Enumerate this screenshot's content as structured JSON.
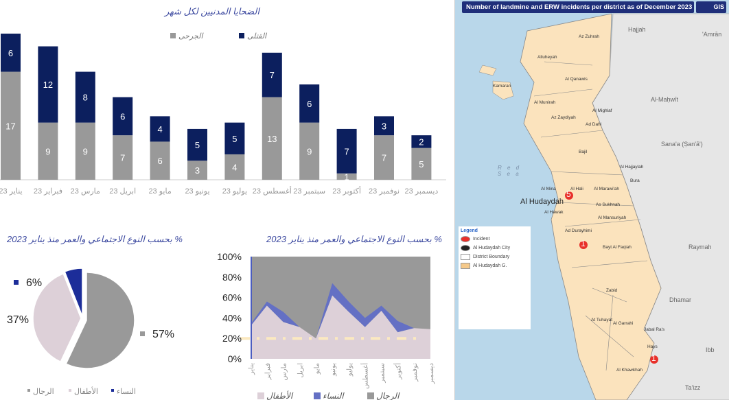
{
  "bar_chart_title": "الضحايا المدنيين لكل شهر",
  "pie_title": "% بحسب النوع الاجتماعي والعمر منذ يناير 2023",
  "area_title": "% بحسب النوع الاجتماعي والعمر منذ يناير 2023",
  "map": {
    "title": "Number of landmine and ERW incidents per district as of December 2023",
    "logo": "GIS",
    "sea_label": "R e d\nS e a",
    "regions": [
      "Hajjah",
      "'Amrān",
      "Al-Maḥwīt",
      "Sana'a (Ṣan'ā')",
      "Raymah",
      "Dhamar",
      "Ibb",
      "Ta'izz"
    ],
    "districts": [
      "Az Zuhrah",
      "Alluheyah",
      "Al Qanawis",
      "Kamaran",
      "Al Munirah",
      "Al Mighlaf",
      "Az Zaydiyah",
      "Ad Dahi",
      "Bajil",
      "Al Hajjaylah",
      "Bura",
      "Al Mina",
      "Al Hali",
      "Al Marawi'ah",
      "As Sukhnah",
      "Al Hawak",
      "Al Mansuriyah",
      "Ad Durayhimi",
      "Bayt Al Faqiah",
      "Zabid",
      "At Tuhayat",
      "Al Garrahi",
      "Jabal Ra's",
      "Hays",
      "Al Khawkhah"
    ],
    "city": "Al Hudaydah",
    "incidents": [
      {
        "district": "Al Hali",
        "count": "5"
      },
      {
        "district": "Ad Durayhimi",
        "count": "1"
      },
      {
        "district": "Hays",
        "count": "1"
      }
    ],
    "legend": {
      "title": "Legend",
      "items": [
        "Incident",
        "Al Hudaydah City",
        "District Boundary",
        "Al Hudaydah G."
      ]
    }
  },
  "chart_data": [
    {
      "type": "bar",
      "stacked": true,
      "title": "الضحايا المدنيين لكل شهر",
      "categories": [
        "يناير 23",
        "فبراير 23",
        "مارس 23",
        "ابريل 23",
        "مايو 23",
        "يونيو 23",
        "يوليو 23",
        "أغسطس 23",
        "سبتمبر 23",
        "أكتوبر 23",
        "نوفمبر 23",
        "ديسمبر 23"
      ],
      "series": [
        {
          "name": "الجرحى",
          "color": "#999999",
          "values": [
            17,
            9,
            9,
            7,
            6,
            3,
            4,
            13,
            9,
            1,
            7,
            5
          ]
        },
        {
          "name": "القتلى",
          "color": "#0c1f5e",
          "values": [
            6,
            12,
            8,
            6,
            4,
            5,
            5,
            7,
            6,
            7,
            3,
            2
          ]
        }
      ],
      "legend": "top-center"
    },
    {
      "type": "pie",
      "title": "% بحسب النوع الاجتماعي والعمر منذ يناير 2023",
      "slices": [
        {
          "name": "الرجال",
          "value": 57,
          "label": "57%",
          "color": "#999999"
        },
        {
          "name": "الأطفال",
          "value": 37,
          "label": "37%",
          "color": "#ddd0d8"
        },
        {
          "name": "النساء",
          "value": 6,
          "label": "6%",
          "color": "#1c2d99"
        }
      ],
      "legend": "bottom"
    },
    {
      "type": "area",
      "stacked": true,
      "title": "% بحسب النوع الاجتماعي والعمر منذ يناير 2023",
      "categories": [
        "يناير",
        "فبراير",
        "مارس",
        "ابريل",
        "مايو",
        "يونيو",
        "يوليو",
        "أغسطس",
        "سبتمبر",
        "أكتوبر",
        "نوفمبر",
        "ديسمبر"
      ],
      "yticks": [
        "0%",
        "20%",
        "40%",
        "60%",
        "80%",
        "100%"
      ],
      "ylim": [
        0,
        100
      ],
      "series": [
        {
          "name": "الأطفال",
          "color": "#ddd0d8",
          "values": [
            32,
            52,
            36,
            31,
            20,
            62,
            46,
            31,
            47,
            26,
            30,
            29
          ]
        },
        {
          "name": "النساء",
          "color": "#6470c4",
          "values": [
            2,
            4,
            10,
            0,
            0,
            12,
            10,
            9,
            5,
            11,
            0,
            0
          ]
        },
        {
          "name": "الرجال",
          "color": "#999999",
          "values": [
            66,
            44,
            54,
            69,
            80,
            26,
            44,
            60,
            48,
            63,
            70,
            71
          ]
        }
      ],
      "reference_line": 20,
      "legend": "bottom"
    }
  ]
}
